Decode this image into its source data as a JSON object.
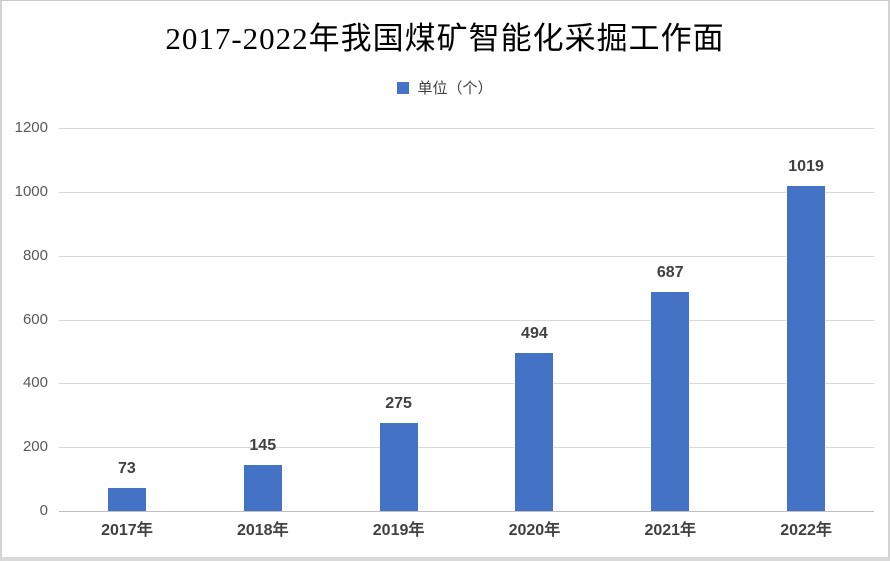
{
  "chart": {
    "title": "2017-2022年我国煤矿智能化采掘工作面",
    "legend_label": "单位（个）",
    "colors": {
      "bar": "#4472C4",
      "gridline": "#D9D9D9",
      "axis_line": "#BFBFBF",
      "tick_label": "#595959",
      "data_label": "#404040",
      "title": "#000000"
    }
  },
  "chart_data": {
    "type": "bar",
    "title": "2017-2022年我国煤矿智能化采掘工作面",
    "legend": [
      "单位（个）"
    ],
    "legend_position": "top",
    "categories": [
      "2017年",
      "2018年",
      "2019年",
      "2020年",
      "2021年",
      "2022年"
    ],
    "values": [
      73,
      145,
      275,
      494,
      687,
      1019
    ],
    "xlabel": "",
    "ylabel": "",
    "ylim": [
      0,
      1200
    ],
    "yticks": [
      0,
      200,
      400,
      600,
      800,
      1000,
      1200
    ],
    "grid": true,
    "data_labels": true,
    "bar_color": "#4472C4"
  }
}
